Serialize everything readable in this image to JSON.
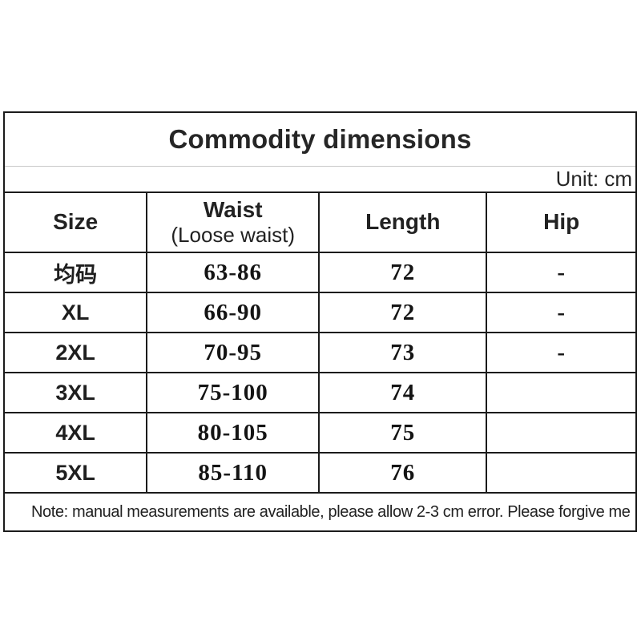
{
  "table": {
    "title": "Commodity dimensions",
    "unit_label": "Unit: cm",
    "columns": [
      {
        "label": "Size"
      },
      {
        "label": "Waist",
        "sub": "(Loose waist)"
      },
      {
        "label": "Length"
      },
      {
        "label": "Hip"
      }
    ],
    "rows": [
      {
        "size": "均码",
        "waist": "63-86",
        "length": "72",
        "hip": "-"
      },
      {
        "size": "XL",
        "waist": "66-90",
        "length": "72",
        "hip": "-"
      },
      {
        "size": "2XL",
        "waist": "70-95",
        "length": "73",
        "hip": "-"
      },
      {
        "size": "3XL",
        "waist": "75-100",
        "length": "74",
        "hip": ""
      },
      {
        "size": "4XL",
        "waist": "80-105",
        "length": "75",
        "hip": ""
      },
      {
        "size": "5XL",
        "waist": "85-110",
        "length": "76",
        "hip": ""
      }
    ],
    "note": "Note: manual measurements are available, please allow 2-3 cm error. Please forgive me",
    "colors": {
      "border": "#1b1b1b",
      "light_divider": "#c9c9c9",
      "text": "#222222",
      "background": "#ffffff"
    }
  },
  "chart_data": {
    "type": "table",
    "title": "Commodity dimensions",
    "unit": "cm",
    "columns": [
      "Size",
      "Waist (Loose waist)",
      "Length",
      "Hip"
    ],
    "rows": [
      [
        "均码",
        "63-86",
        "72",
        "-"
      ],
      [
        "XL",
        "66-90",
        "72",
        "-"
      ],
      [
        "2XL",
        "70-95",
        "73",
        "-"
      ],
      [
        "3XL",
        "75-100",
        "74",
        ""
      ],
      [
        "4XL",
        "80-105",
        "75",
        ""
      ],
      [
        "5XL",
        "85-110",
        "76",
        ""
      ]
    ],
    "note": "Note: manual measurements are available, please allow 2-3 cm error. Please forgive me",
    "layout": {
      "grid": "on",
      "title_position": "top-center",
      "unit_position": "top-right"
    }
  }
}
